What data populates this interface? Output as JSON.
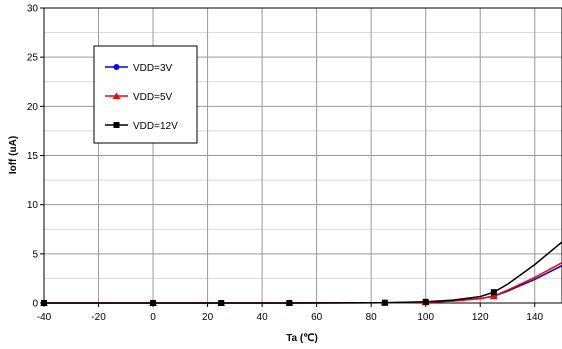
{
  "chart_data": {
    "type": "line",
    "title": "",
    "xlabel": "Ta (℃)",
    "ylabel": "Ioff (uA)",
    "xlim": [
      -40,
      150
    ],
    "ylim": [
      0,
      30
    ],
    "xticks": [
      -40,
      -20,
      0,
      20,
      40,
      60,
      80,
      100,
      120,
      140
    ],
    "yticks": [
      0,
      5,
      10,
      15,
      20,
      25,
      30
    ],
    "grid": true,
    "legend_position": "upper-left",
    "series": [
      {
        "name": "VDD=3V",
        "color": "#0000ff",
        "marker": "circle",
        "x": [
          -40,
          0,
          25,
          50,
          85,
          100,
          110,
          120,
          125,
          130,
          140,
          150
        ],
        "y": [
          0,
          0,
          0,
          0,
          0.02,
          0.08,
          0.2,
          0.45,
          0.7,
          1.2,
          2.4,
          3.8
        ],
        "marker_x": [
          -40,
          0,
          25,
          50,
          85,
          100,
          125
        ]
      },
      {
        "name": "VDD=5V",
        "color": "#ff0000",
        "marker": "triangle",
        "x": [
          -40,
          0,
          25,
          50,
          85,
          100,
          110,
          120,
          125,
          130,
          140,
          150
        ],
        "y": [
          0,
          0,
          0,
          0,
          0.02,
          0.08,
          0.2,
          0.45,
          0.7,
          1.3,
          2.6,
          4.1
        ],
        "marker_x": [
          -40,
          0,
          25,
          50,
          85,
          100,
          125
        ]
      },
      {
        "name": "VDD=12V",
        "color": "#000000",
        "marker": "square",
        "x": [
          -40,
          0,
          25,
          50,
          85,
          100,
          110,
          120,
          125,
          130,
          140,
          150
        ],
        "y": [
          0,
          0,
          0,
          0,
          0.03,
          0.12,
          0.3,
          0.65,
          1.1,
          1.9,
          3.9,
          6.2
        ],
        "marker_x": [
          -40,
          0,
          25,
          50,
          85,
          100,
          125
        ]
      }
    ]
  }
}
